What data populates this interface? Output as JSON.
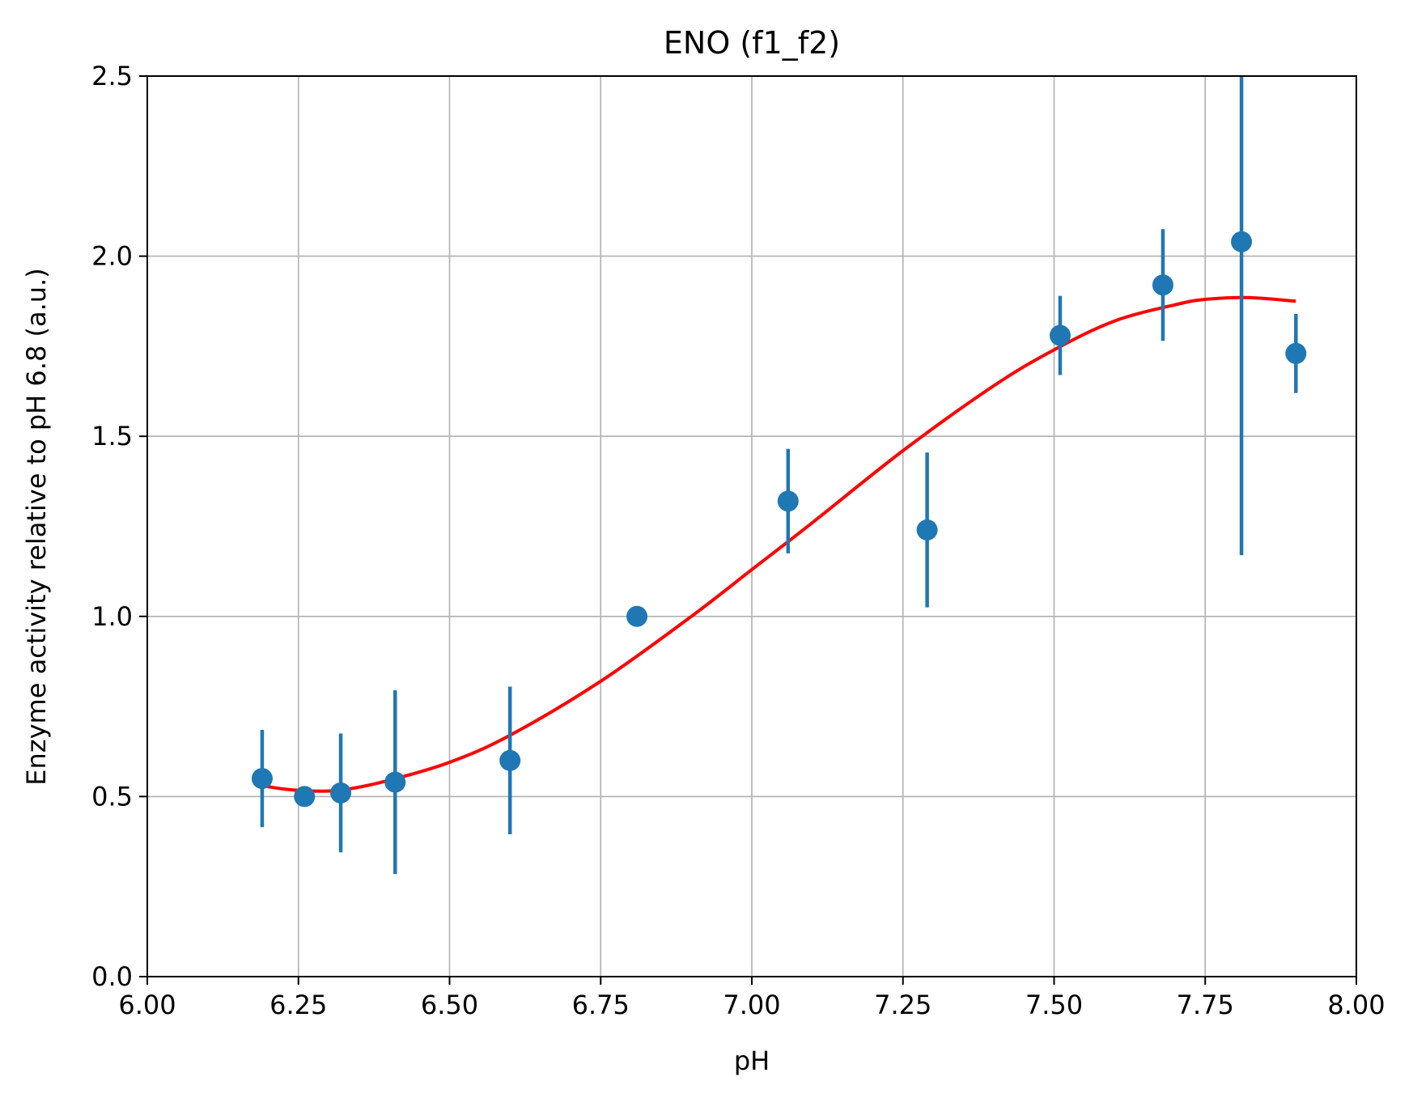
{
  "chart_data": {
    "type": "scatter",
    "title": "ENO (f1_f2)",
    "xlabel": "pH",
    "ylabel": "Enzyme activity relative to pH 6.8 (a.u.)",
    "xlim": [
      6.0,
      8.0
    ],
    "ylim": [
      0.0,
      2.5
    ],
    "xticks": [
      "6.00",
      "6.25",
      "6.50",
      "6.75",
      "7.00",
      "7.25",
      "7.50",
      "7.75",
      "8.00"
    ],
    "yticks": [
      "0.0",
      "0.5",
      "1.0",
      "1.5",
      "2.0",
      "2.5"
    ],
    "grid": true,
    "points": [
      {
        "x": 6.19,
        "y": 0.55,
        "err": 0.135
      },
      {
        "x": 6.26,
        "y": 0.5,
        "err": 0.0
      },
      {
        "x": 6.32,
        "y": 0.51,
        "err": 0.165
      },
      {
        "x": 6.41,
        "y": 0.54,
        "err": 0.255
      },
      {
        "x": 6.6,
        "y": 0.6,
        "err": 0.205
      },
      {
        "x": 6.81,
        "y": 1.0,
        "err": 0.0
      },
      {
        "x": 7.06,
        "y": 1.32,
        "err": 0.145
      },
      {
        "x": 7.29,
        "y": 1.24,
        "err": 0.215
      },
      {
        "x": 7.51,
        "y": 1.78,
        "err": 0.11
      },
      {
        "x": 7.68,
        "y": 1.92,
        "err": 0.155
      },
      {
        "x": 7.81,
        "y": 2.04,
        "err": 0.87
      },
      {
        "x": 7.9,
        "y": 1.73,
        "err": 0.11
      }
    ],
    "fit": {
      "color": "#ff0000",
      "x": [
        6.19,
        6.23,
        6.28,
        6.33,
        6.4,
        6.5,
        6.6,
        6.75,
        6.9,
        7.0,
        7.1,
        7.25,
        7.4,
        7.5,
        7.6,
        7.7,
        7.75,
        7.82,
        7.9
      ],
      "y": [
        0.53,
        0.52,
        0.515,
        0.52,
        0.545,
        0.595,
        0.67,
        0.82,
        1.0,
        1.13,
        1.26,
        1.46,
        1.64,
        1.74,
        1.82,
        1.865,
        1.88,
        1.885,
        1.875
      ]
    },
    "point_color": "#1f77b4"
  }
}
